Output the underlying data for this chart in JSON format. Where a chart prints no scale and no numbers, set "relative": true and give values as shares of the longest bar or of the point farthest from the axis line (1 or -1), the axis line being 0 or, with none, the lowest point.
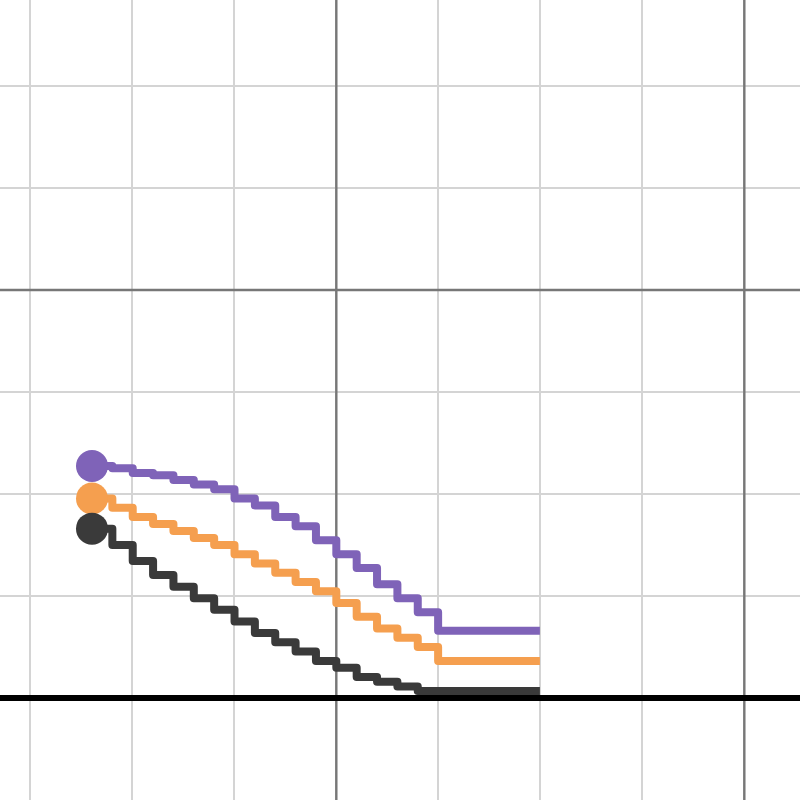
{
  "chart_data": {
    "type": "step",
    "relative": true,
    "grid": true,
    "marker": "none",
    "categories": [
      null,
      null,
      null,
      null,
      null,
      null,
      null,
      null,
      null,
      null,
      null,
      null,
      null,
      null,
      null,
      null,
      null,
      null,
      null,
      null,
      null,
      null,
      null
    ],
    "series": [
      {
        "color": "#7f63b8",
        "values": [
          1,
          0.99,
          0.97,
          0.96,
          0.94,
          0.92,
          0.9,
          0.86,
          0.83,
          0.78,
          0.74,
          0.68,
          0.62,
          0.56,
          0.49,
          0.43,
          0.37,
          0.29,
          0.29,
          0.29,
          0.29,
          0.29,
          0.29
        ]
      },
      {
        "color": "#f59f4f",
        "values": [
          0.86,
          0.82,
          0.78,
          0.75,
          0.72,
          0.69,
          0.66,
          0.62,
          0.58,
          0.54,
          0.5,
          0.46,
          0.41,
          0.35,
          0.3,
          0.26,
          0.22,
          0.16,
          0.16,
          0.16,
          0.16,
          0.16,
          0.16
        ]
      },
      {
        "color": "#3a3a3a",
        "values": [
          0.73,
          0.66,
          0.59,
          0.53,
          0.48,
          0.43,
          0.38,
          0.33,
          0.28,
          0.24,
          0.2,
          0.16,
          0.13,
          0.09,
          0.07,
          0.05,
          0.03,
          0.03,
          0.03,
          0.03,
          0.03,
          0.03,
          0.03
        ]
      }
    ]
  }
}
